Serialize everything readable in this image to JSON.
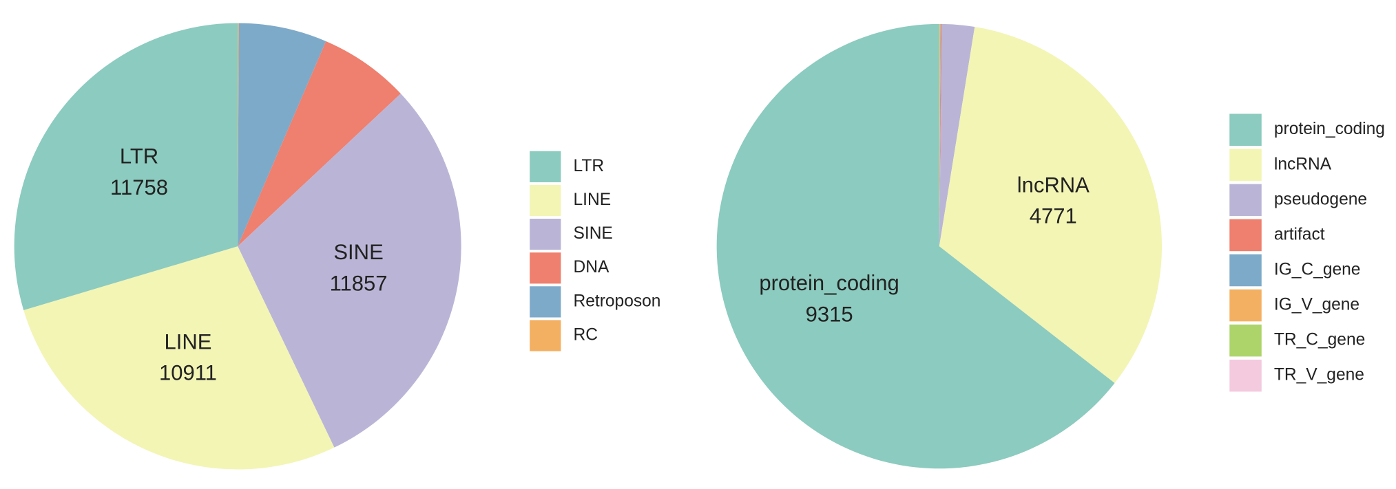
{
  "chart_data": [
    {
      "type": "pie",
      "categories": [
        "LTR",
        "LINE",
        "SINE",
        "DNA",
        "Retroposon",
        "RC"
      ],
      "values": [
        11758,
        10911,
        11857,
        2600,
        2535,
        30
      ],
      "colors": [
        "#8ccbbf",
        "#f3f5b5",
        "#bab5d6",
        "#ef7f6e",
        "#7eaac9",
        "#f4b062"
      ]
    },
    {
      "type": "pie",
      "categories": [
        "protein_coding",
        "lncRNA",
        "pseudogene",
        "artifact",
        "IG_C_gene",
        "IG_V_gene",
        "TR_C_gene",
        "TR_V_gene"
      ],
      "values": [
        9315,
        4771,
        340,
        10,
        5,
        8,
        3,
        2
      ],
      "colors": [
        "#8ccbbf",
        "#f3f5b5",
        "#bab5d6",
        "#ef7f6e",
        "#7eaac9",
        "#f4b062",
        "#add46a",
        "#f4cadf"
      ]
    }
  ]
}
